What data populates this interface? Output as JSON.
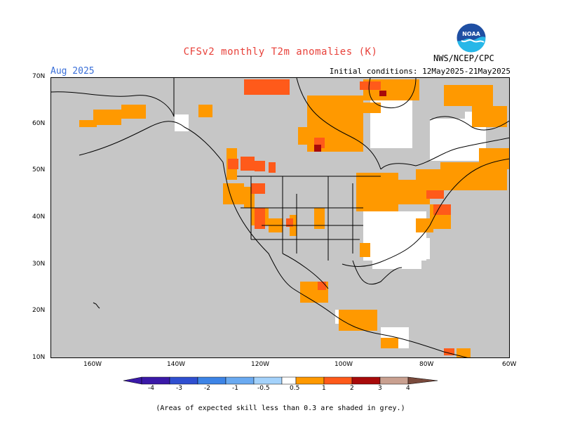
{
  "header": {
    "title": "CFSv2 monthly T2m anomalies (K)",
    "month": "Aug 2025",
    "initial_conditions": "Initial conditions: 12May2025-21May2025",
    "agency": "NWS/NCEP/CPC"
  },
  "logo": {
    "text": "NOAA",
    "colors": {
      "top": "#1f4fa3",
      "bottom": "#27b7e8"
    }
  },
  "map": {
    "lat_labels": [
      "70N",
      "60N",
      "50N",
      "40N",
      "30N",
      "20N",
      "10N"
    ],
    "lon_labels": [
      "160W",
      "140W",
      "120W",
      "100W",
      "80W",
      "60W"
    ],
    "background_color": "#c6c6c6",
    "legend_colors": {
      "-4": "#3a19a8",
      "-3": "#2f4fd0",
      "-2": "#3d84e6",
      "-1": "#6aaaf1",
      "-0.5": "#a4d2fb",
      "0": "#ffffff",
      "0.5": "#ff9900",
      "1": "#ff5a1a",
      "2": "#e8240c",
      "3": "#a80a0a",
      "4": "#c9a090",
      "5": "#7a4a3c"
    }
  },
  "colorbar": {
    "labels": [
      "-4",
      "-3",
      "-2",
      "-1",
      "-0.5",
      "0.5",
      "1",
      "2",
      "3",
      "4"
    ]
  },
  "footnote": "(Areas of expected skill less than 0.3 are shaded in grey.)"
}
